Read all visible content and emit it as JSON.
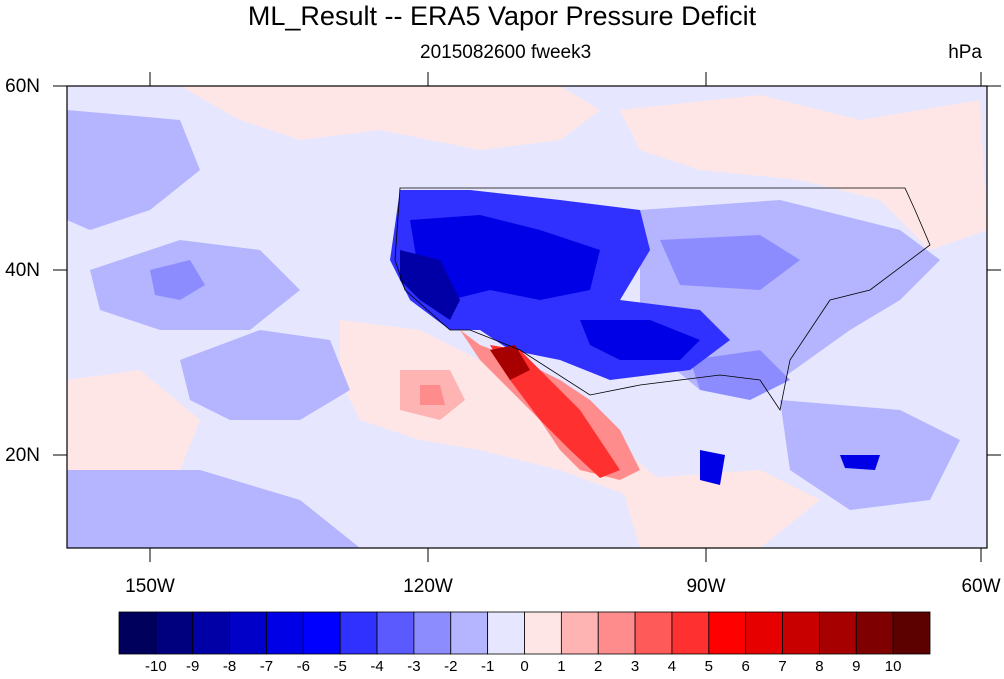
{
  "title": "ML_Result -- ERA5 Vapor Pressure Deficit",
  "subtitle": "2015082600 fweek3",
  "units": "hPa",
  "lat_labels": [
    "60N",
    "40N",
    "20N"
  ],
  "lon_labels": [
    "150W",
    "120W",
    "90W",
    "60W"
  ],
  "colorbar": {
    "labels": [
      "-10",
      "-9",
      "-8",
      "-7",
      "-6",
      "-5",
      "-4",
      "-3",
      "-2",
      "-1",
      "0",
      "1",
      "2",
      "3",
      "4",
      "5",
      "6",
      "7",
      "8",
      "9",
      "10"
    ],
    "colors": [
      "#00005c",
      "#00007f",
      "#0000a6",
      "#0000c8",
      "#0000e6",
      "#0000ff",
      "#3030ff",
      "#5a5aff",
      "#8c8cff",
      "#b4b4ff",
      "#e6e6ff",
      "#ffe6e6",
      "#ffb4b4",
      "#ff8c8c",
      "#ff5a5a",
      "#ff3030",
      "#ff0000",
      "#e60000",
      "#c80000",
      "#a60000",
      "#7f0000",
      "#5c0000"
    ]
  }
}
